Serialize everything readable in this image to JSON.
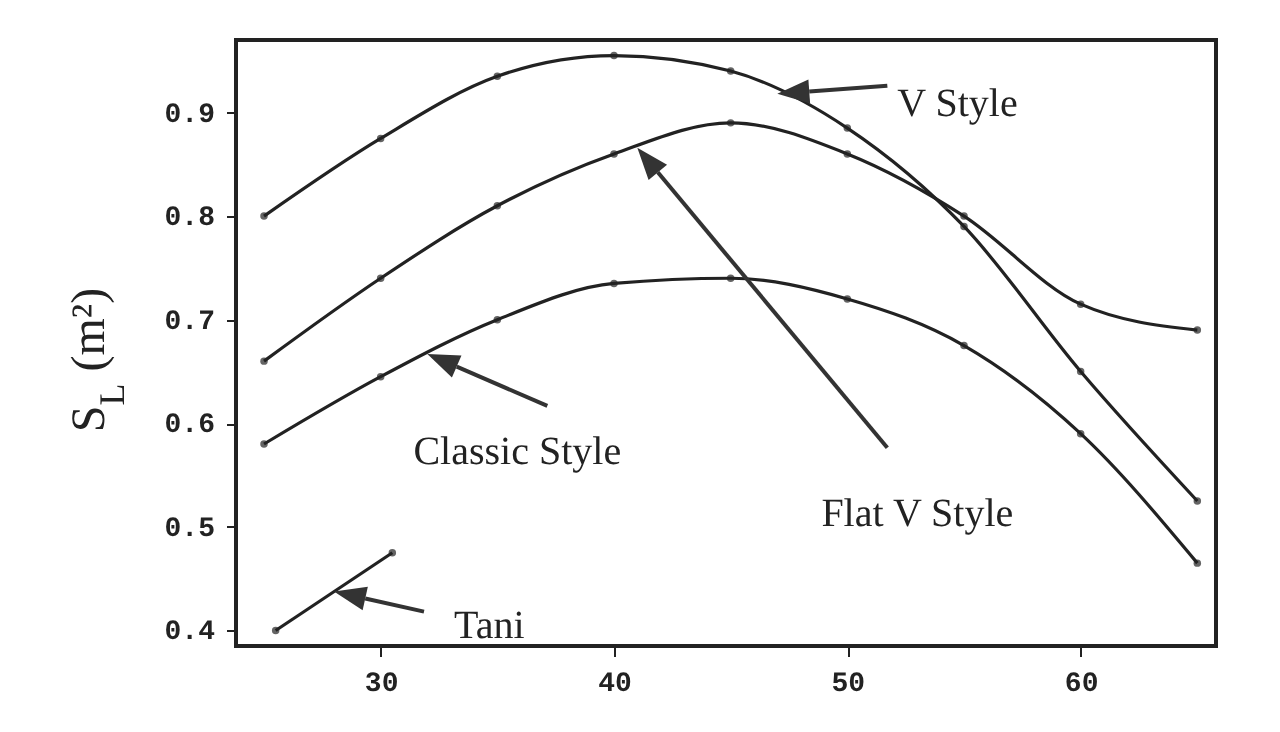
{
  "chart_data": {
    "type": "line",
    "ylabel": "S$_{L}$ (m²)",
    "x": [
      25,
      30,
      35,
      40,
      45,
      50,
      55,
      60,
      65
    ],
    "series": [
      {
        "name": "V Style",
        "color": "#222222",
        "values": [
          0.8,
          0.875,
          0.935,
          0.955,
          0.94,
          0.885,
          0.79,
          0.65,
          0.525
        ]
      },
      {
        "name": "Flat V Style",
        "color": "#222222",
        "values": [
          0.66,
          0.74,
          0.81,
          0.86,
          0.89,
          0.86,
          0.8,
          0.715,
          0.69
        ]
      },
      {
        "name": "Classic Style",
        "color": "#222222",
        "values": [
          0.58,
          0.645,
          0.7,
          0.735,
          0.74,
          0.72,
          0.675,
          0.59,
          0.465
        ]
      },
      {
        "name": "Tani",
        "color": "#222222",
        "x": [
          25.5,
          30.5
        ],
        "values": [
          0.4,
          0.475
        ]
      }
    ],
    "xlim": [
      23.8,
      65.8
    ],
    "ylim": [
      0.385,
      0.97
    ],
    "xticks": [
      30,
      40,
      50,
      60
    ],
    "yticks": [
      0.4,
      0.5,
      0.6,
      0.7,
      0.8,
      0.9
    ],
    "grid": false,
    "marker": "circle",
    "line_style": "solid"
  }
}
